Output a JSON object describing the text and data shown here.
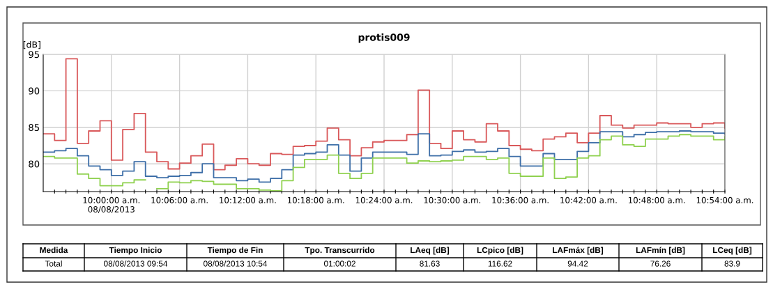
{
  "chart_data": {
    "type": "step",
    "title": "protis009",
    "ylabel": "[dB]",
    "x": [
      "2013-08-08T09:54",
      "2013-08-08T09:55",
      "2013-08-08T09:56",
      "2013-08-08T09:57",
      "2013-08-08T09:58",
      "2013-08-08T09:59",
      "2013-08-08T10:00",
      "2013-08-08T10:01",
      "2013-08-08T10:02",
      "2013-08-08T10:03",
      "2013-08-08T10:04",
      "2013-08-08T10:05",
      "2013-08-08T10:06",
      "2013-08-08T10:07",
      "2013-08-08T10:08",
      "2013-08-08T10:09",
      "2013-08-08T10:10",
      "2013-08-08T10:11",
      "2013-08-08T10:12",
      "2013-08-08T10:13",
      "2013-08-08T10:14",
      "2013-08-08T10:15",
      "2013-08-08T10:16",
      "2013-08-08T10:17",
      "2013-08-08T10:18",
      "2013-08-08T10:19",
      "2013-08-08T10:20",
      "2013-08-08T10:21",
      "2013-08-08T10:22",
      "2013-08-08T10:23",
      "2013-08-08T10:24",
      "2013-08-08T10:25",
      "2013-08-08T10:26",
      "2013-08-08T10:27",
      "2013-08-08T10:28",
      "2013-08-08T10:29",
      "2013-08-08T10:30",
      "2013-08-08T10:31",
      "2013-08-08T10:32",
      "2013-08-08T10:33",
      "2013-08-08T10:34",
      "2013-08-08T10:35",
      "2013-08-08T10:36",
      "2013-08-08T10:37",
      "2013-08-08T10:38",
      "2013-08-08T10:39",
      "2013-08-08T10:40",
      "2013-08-08T10:41",
      "2013-08-08T10:42",
      "2013-08-08T10:43",
      "2013-08-08T10:44",
      "2013-08-08T10:45",
      "2013-08-08T10:46",
      "2013-08-08T10:47",
      "2013-08-08T10:48",
      "2013-08-08T10:49",
      "2013-08-08T10:50",
      "2013-08-08T10:51",
      "2013-08-08T10:52",
      "2013-08-08T10:53",
      "2013-08-08T10:54"
    ],
    "series": [
      {
        "color": "#d9585a",
        "values": [
          84.1,
          83.2,
          94.4,
          82.8,
          84.5,
          85.9,
          80.5,
          84.7,
          86.9,
          81.6,
          80.3,
          79.3,
          80.1,
          81.1,
          82.7,
          79.2,
          79.8,
          80.7,
          80.0,
          79.8,
          81.4,
          81.3,
          82.4,
          82.5,
          83.1,
          84.9,
          83.3,
          81.1,
          82.2,
          83.0,
          83.2,
          83.2,
          84.0,
          90.1,
          82.8,
          82.1,
          84.5,
          83.3,
          83.0,
          85.5,
          84.5,
          82.5,
          82.0,
          81.8,
          83.4,
          83.7,
          84.2,
          82.9,
          84.2,
          86.6,
          85.3,
          84.9,
          85.3,
          85.3,
          85.6,
          85.5,
          85.5,
          85.0,
          85.5,
          85.6,
          84.9
        ]
      },
      {
        "color": "#3e6fa8",
        "values": [
          81.6,
          81.8,
          82.1,
          81.1,
          79.7,
          79.2,
          78.4,
          79.0,
          80.3,
          78.3,
          78.1,
          78.3,
          78.4,
          78.8,
          80.0,
          78.1,
          78.1,
          77.7,
          77.9,
          77.5,
          78.0,
          79.2,
          81.2,
          81.4,
          81.6,
          82.6,
          81.2,
          79.0,
          80.8,
          81.6,
          81.6,
          81.6,
          81.3,
          84.1,
          81.1,
          81.2,
          81.7,
          81.9,
          81.6,
          81.7,
          82.1,
          81.0,
          79.7,
          79.7,
          81.4,
          80.6,
          80.6,
          81.7,
          82.9,
          84.4,
          84.4,
          83.7,
          84.0,
          84.3,
          84.4,
          84.4,
          84.5,
          84.4,
          84.4,
          84.2,
          84.1
        ]
      },
      {
        "color": "#8fd14f",
        "values": [
          81.0,
          80.8,
          80.8,
          78.6,
          78.0,
          77.0,
          77.0,
          77.4,
          77.8,
          null,
          76.6,
          77.5,
          77.4,
          77.7,
          77.6,
          77.2,
          77.2,
          76.6,
          76.6,
          76.4,
          76.3,
          77.7,
          79.5,
          80.6,
          80.6,
          81.2,
          78.7,
          78.0,
          78.7,
          80.8,
          80.8,
          80.8,
          80.1,
          80.4,
          80.3,
          80.4,
          80.5,
          81.0,
          81.0,
          80.6,
          80.8,
          78.7,
          78.3,
          78.3,
          80.8,
          78.0,
          78.2,
          80.8,
          81.1,
          83.3,
          83.8,
          82.6,
          82.4,
          83.4,
          83.4,
          83.8,
          84.0,
          83.8,
          83.8,
          83.3,
          83.7
        ]
      }
    ],
    "xlim": [
      "2013-08-08T09:54",
      "2013-08-08T10:54"
    ],
    "xticks": [
      {
        "value": "2013-08-08T09:55",
        "label": null
      },
      {
        "value": "2013-08-08T09:56",
        "label": null
      },
      {
        "value": "2013-08-08T09:57",
        "label": null
      },
      {
        "value": "2013-08-08T09:58",
        "label": null
      },
      {
        "value": "2013-08-08T09:59",
        "label": null
      },
      {
        "value": "2013-08-08T10:00",
        "label": "10:00:00 a.m.\n08/08/2013"
      },
      {
        "value": "2013-08-08T10:01",
        "label": null
      },
      {
        "value": "2013-08-08T10:02",
        "label": null
      },
      {
        "value": "2013-08-08T10:03",
        "label": null
      },
      {
        "value": "2013-08-08T10:04",
        "label": null
      },
      {
        "value": "2013-08-08T10:05",
        "label": null
      },
      {
        "value": "2013-08-08T10:06",
        "label": "10:06:00 a.m."
      },
      {
        "value": "2013-08-08T10:07",
        "label": null
      },
      {
        "value": "2013-08-08T10:08",
        "label": null
      },
      {
        "value": "2013-08-08T10:09",
        "label": null
      },
      {
        "value": "2013-08-08T10:10",
        "label": null
      },
      {
        "value": "2013-08-08T10:11",
        "label": null
      },
      {
        "value": "2013-08-08T10:12",
        "label": "10:12:00 a.m."
      },
      {
        "value": "2013-08-08T10:13",
        "label": null
      },
      {
        "value": "2013-08-08T10:14",
        "label": null
      },
      {
        "value": "2013-08-08T10:15",
        "label": null
      },
      {
        "value": "2013-08-08T10:16",
        "label": null
      },
      {
        "value": "2013-08-08T10:17",
        "label": null
      },
      {
        "value": "2013-08-08T10:18",
        "label": "10:18:00 a.m."
      },
      {
        "value": "2013-08-08T10:19",
        "label": null
      },
      {
        "value": "2013-08-08T10:20",
        "label": null
      },
      {
        "value": "2013-08-08T10:21",
        "label": null
      },
      {
        "value": "2013-08-08T10:22",
        "label": null
      },
      {
        "value": "2013-08-08T10:23",
        "label": null
      },
      {
        "value": "2013-08-08T10:24",
        "label": "10:24:00 a.m."
      },
      {
        "value": "2013-08-08T10:25",
        "label": null
      },
      {
        "value": "2013-08-08T10:26",
        "label": null
      },
      {
        "value": "2013-08-08T10:27",
        "label": null
      },
      {
        "value": "2013-08-08T10:28",
        "label": null
      },
      {
        "value": "2013-08-08T10:29",
        "label": null
      },
      {
        "value": "2013-08-08T10:30",
        "label": "10:30:00 a.m."
      },
      {
        "value": "2013-08-08T10:31",
        "label": null
      },
      {
        "value": "2013-08-08T10:32",
        "label": null
      },
      {
        "value": "2013-08-08T10:33",
        "label": null
      },
      {
        "value": "2013-08-08T10:34",
        "label": null
      },
      {
        "value": "2013-08-08T10:35",
        "label": null
      },
      {
        "value": "2013-08-08T10:36",
        "label": "10:36:00 a.m."
      },
      {
        "value": "2013-08-08T10:37",
        "label": null
      },
      {
        "value": "2013-08-08T10:38",
        "label": null
      },
      {
        "value": "2013-08-08T10:39",
        "label": null
      },
      {
        "value": "2013-08-08T10:40",
        "label": null
      },
      {
        "value": "2013-08-08T10:41",
        "label": null
      },
      {
        "value": "2013-08-08T10:42",
        "label": "10:42:00 a.m."
      },
      {
        "value": "2013-08-08T10:43",
        "label": null
      },
      {
        "value": "2013-08-08T10:44",
        "label": null
      },
      {
        "value": "2013-08-08T10:45",
        "label": null
      },
      {
        "value": "2013-08-08T10:46",
        "label": null
      },
      {
        "value": "2013-08-08T10:47",
        "label": null
      },
      {
        "value": "2013-08-08T10:48",
        "label": "10:48:00 a.m."
      },
      {
        "value": "2013-08-08T10:49",
        "label": null
      },
      {
        "value": "2013-08-08T10:50",
        "label": null
      },
      {
        "value": "2013-08-08T10:51",
        "label": null
      },
      {
        "value": "2013-08-08T10:52",
        "label": null
      },
      {
        "value": "2013-08-08T10:53",
        "label": null
      },
      {
        "value": "2013-08-08T10:54",
        "label": "10:54:00 a.m."
      }
    ],
    "ylim": [
      76.2,
      95
    ],
    "yticks": [
      80,
      85,
      90,
      95
    ],
    "grid": true,
    "annotations": [
      "Medida",
      "Tiempo Inicio",
      "Tiempo de Fin",
      "Tpo. Transcurrido",
      "LAeq [dB]",
      "LCpico [dB]",
      "LAFmáx [dB]",
      "LAFmín [dB]",
      "LCeq [dB]",
      "Total",
      "08/08/2013 09:54",
      "08/08/2013 10:54",
      "01:00:02",
      "81.63",
      "116.62",
      "94.42",
      "76.26",
      "83.9"
    ]
  }
}
